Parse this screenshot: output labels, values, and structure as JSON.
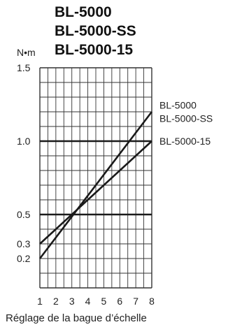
{
  "chart_data": {
    "type": "line",
    "title_lines": [
      "BL-5000",
      "BL-5000-SS",
      "BL-5000-15"
    ],
    "ylabel": "N•m",
    "xlabel": "Réglage de la bague d’échelle",
    "xlim": [
      1,
      8
    ],
    "ylim": [
      0,
      1.5
    ],
    "x_ticks": [
      1,
      2,
      3,
      4,
      5,
      6,
      7,
      8
    ],
    "y_ticks": [
      {
        "value": 1.5,
        "label": "1.5"
      },
      {
        "value": 1.0,
        "label": "1.0"
      },
      {
        "value": 0.5,
        "label": "0.5"
      },
      {
        "value": 0.3,
        "label": "0.3"
      },
      {
        "value": 0.2,
        "label": "0.2"
      }
    ],
    "grid": true,
    "series": [
      {
        "name": "BL-5000 / BL-5000-SS",
        "labels": [
          "BL-5000",
          "BL-5000-SS"
        ],
        "x": [
          1,
          8
        ],
        "y": [
          0.2,
          1.2
        ]
      },
      {
        "name": "BL-5000-15",
        "labels": [
          "BL-5000-15"
        ],
        "x": [
          1,
          8
        ],
        "y": [
          0.3,
          1.0
        ]
      }
    ],
    "reference_lines": [
      {
        "y": 1.0
      },
      {
        "y": 0.5
      }
    ]
  }
}
